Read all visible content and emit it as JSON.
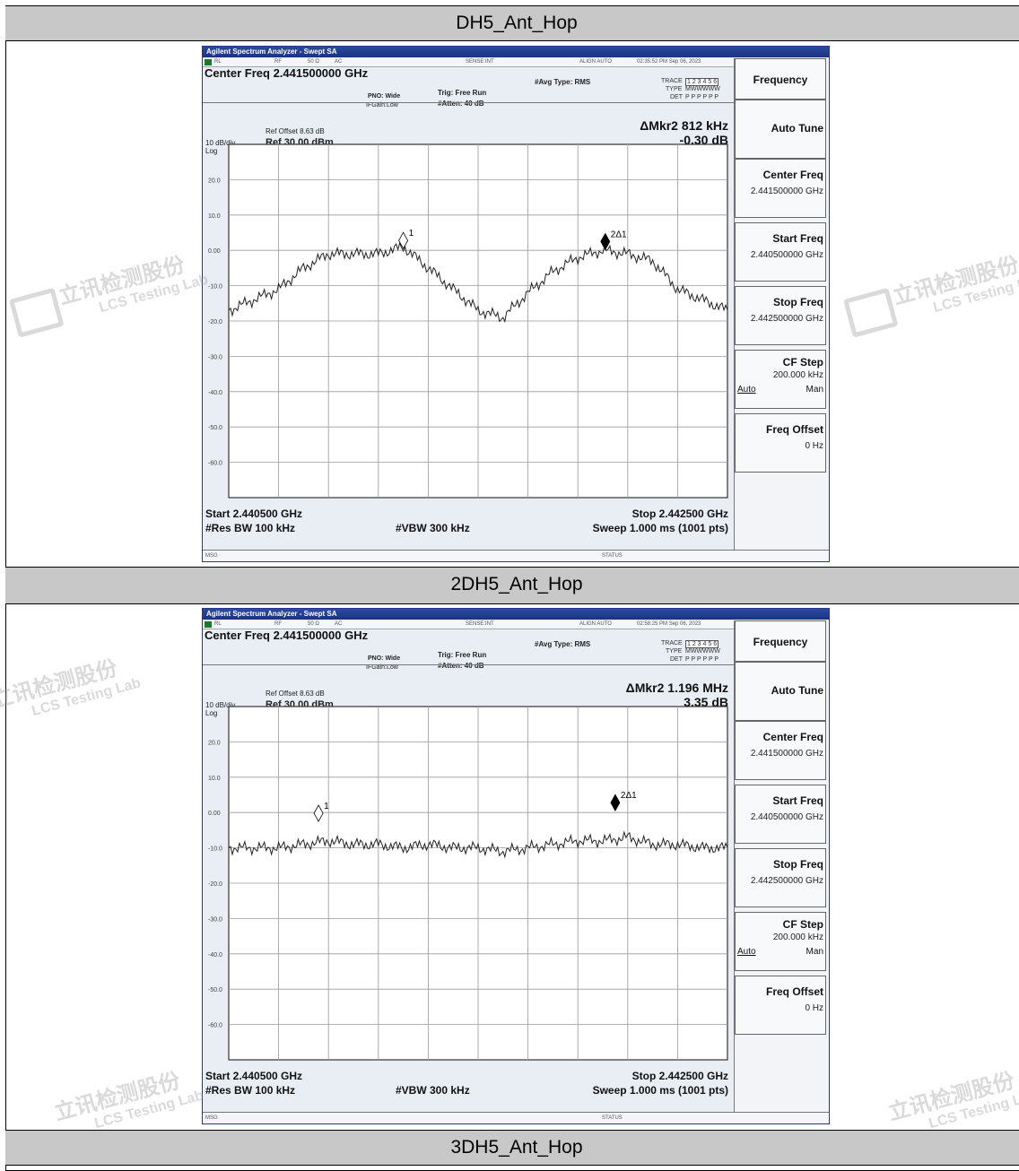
{
  "sections": [
    {
      "header": "DH5_Ant_Hop",
      "sa": {
        "app_title": "Agilent Spectrum Analyzer - Swept SA",
        "status": {
          "rl": "RL",
          "rf": "RF",
          "ohm": "50 Ω",
          "ac": "AC",
          "sense": "SENSE:INT",
          "align": "ALIGN AUTO",
          "timestamp": "02:35:52 PM Sep 06, 2023"
        },
        "center_freq": "Center Freq 2.441500000 GHz",
        "pno": "PNO: Wide",
        "ifgain": "IFGain:Low",
        "trig": "Trig: Free Run",
        "atten": "#Atten: 40 dB",
        "avg_type": "#Avg Type: RMS",
        "trace_label": "TRACE",
        "trace_nums": "1 2 3 4 5 6",
        "type_label": "TYPE",
        "type_val": "MWWWWW",
        "det_label": "DET",
        "det_val": "P P P P P P",
        "ref_offset": "Ref Offset 8.63 dB",
        "ref_level": "Ref 30.00 dBm",
        "scale": "10 dB/div",
        "log": "Log",
        "marker_line1": "ΔMkr2 812 kHz",
        "marker_line2": "-0.30 dB",
        "start": "Start 2.440500 GHz",
        "stop": "Stop 2.442500 GHz",
        "rbw": "#Res BW 100 kHz",
        "vbw": "#VBW 300 kHz",
        "sweep": "Sweep  1.000 ms (1001 pts)",
        "msg": "MSG",
        "status_label": "STATUS",
        "menu": {
          "title": "Frequency",
          "auto_tune": "Auto Tune",
          "center_label": "Center Freq",
          "center_val": "2.441500000 GHz",
          "start_label": "Start Freq",
          "start_val": "2.440500000 GHz",
          "stop_label": "Stop Freq",
          "stop_val": "2.442500000 GHz",
          "cf_label": "CF Step",
          "cf_val": "200.000 kHz",
          "cf_auto": "Auto",
          "cf_man": "Man",
          "offset_label": "Freq Offset",
          "offset_val": "0 Hz"
        },
        "y_ticks": [
          "20.0",
          "10.0",
          "0.00",
          "-10.0",
          "-20.0",
          "-30.0",
          "-40.0",
          "-50.0",
          "-60.0"
        ],
        "marker1_label": "1",
        "marker2_label": "2Δ1"
      }
    },
    {
      "header": "2DH5_Ant_Hop",
      "sa": {
        "app_title": "Agilent Spectrum Analyzer - Swept SA",
        "status": {
          "rl": "RL",
          "rf": "RF",
          "ohm": "50 Ω",
          "ac": "AC",
          "sense": "SENSE:INT",
          "align": "ALIGN AUTO",
          "timestamp": "02:58:25 PM Sep 06, 2023"
        },
        "center_freq": "Center Freq 2.441500000 GHz",
        "pno": "PNO: Wide",
        "ifgain": "IFGain:Low",
        "trig": "Trig: Free Run",
        "atten": "#Atten: 40 dB",
        "avg_type": "#Avg Type: RMS",
        "trace_label": "TRACE",
        "trace_nums": "1 2 3 4 5 6",
        "type_label": "TYPE",
        "type_val": "MWWWWW",
        "det_label": "DET",
        "det_val": "P P P P P P",
        "ref_offset": "Ref Offset 8.63 dB",
        "ref_level": "Ref 30.00 dBm",
        "scale": "10 dB/div",
        "log": "Log",
        "marker_line1": "ΔMkr2 1.196 MHz",
        "marker_line2": "3.35 dB",
        "start": "Start 2.440500 GHz",
        "stop": "Stop 2.442500 GHz",
        "rbw": "#Res BW 100 kHz",
        "vbw": "#VBW 300 kHz",
        "sweep": "Sweep  1.000 ms (1001 pts)",
        "msg": "MSG",
        "status_label": "STATUS",
        "menu": {
          "title": "Frequency",
          "auto_tune": "Auto Tune",
          "center_label": "Center Freq",
          "center_val": "2.441500000 GHz",
          "start_label": "Start Freq",
          "start_val": "2.440500000 GHz",
          "stop_label": "Stop Freq",
          "stop_val": "2.442500000 GHz",
          "cf_label": "CF Step",
          "cf_val": "200.000 kHz",
          "cf_auto": "Auto",
          "cf_man": "Man",
          "offset_label": "Freq Offset",
          "offset_val": "0 Hz"
        },
        "y_ticks": [
          "20.0",
          "10.0",
          "0.00",
          "-10.0",
          "-20.0",
          "-30.0",
          "-40.0",
          "-50.0",
          "-60.0"
        ],
        "marker1_label": "1",
        "marker2_label": "2Δ1"
      }
    },
    {
      "header": "3DH5_Ant_Hop"
    }
  ],
  "watermark": {
    "cn": "立讯检测股份",
    "en": "LCS Testing Lab"
  },
  "chart_data": [
    {
      "type": "line",
      "title": "DH5_Ant_Hop",
      "xlabel": "",
      "ylabel": "",
      "xlim": [
        2.4405,
        2.4425
      ],
      "ylim": [
        -70,
        30
      ],
      "x_unit": "GHz",
      "y_unit": "dBm",
      "grid": true,
      "series": [
        {
          "x": [
            2.4405,
            2.4406,
            2.4407,
            2.4408,
            2.4409,
            2.441,
            2.4411,
            2.4412,
            2.4413,
            2.4414,
            2.4415,
            2.4416,
            2.4417,
            2.4418,
            2.4419,
            2.442,
            2.4421,
            2.4422,
            2.4423,
            2.4424,
            2.4425
          ],
          "values": [
            -17,
            -14,
            -11,
            -5,
            -1,
            -1,
            -1,
            1,
            -5,
            -11,
            -17,
            -19,
            -12,
            -6,
            -2,
            0,
            -1,
            -3,
            -11,
            -14,
            -17
          ]
        }
      ],
      "markers": [
        {
          "label": "1",
          "x": 2.4412,
          "y": 0.5
        },
        {
          "label": "2Δ1",
          "x": 2.44201,
          "y": 0.2
        }
      ]
    },
    {
      "type": "line",
      "title": "2DH5_Ant_Hop",
      "xlabel": "",
      "ylabel": "",
      "xlim": [
        2.4405,
        2.4425
      ],
      "ylim": [
        -70,
        30
      ],
      "x_unit": "GHz",
      "y_unit": "dBm",
      "grid": true,
      "series": [
        {
          "x": [
            2.4405,
            2.4406,
            2.4407,
            2.4408,
            2.4409,
            2.441,
            2.4411,
            2.4412,
            2.4413,
            2.4414,
            2.4415,
            2.4416,
            2.4417,
            2.4418,
            2.4419,
            2.442,
            2.4421,
            2.4422,
            2.4423,
            2.4424,
            2.4425
          ],
          "values": [
            -10,
            -10,
            -10,
            -9,
            -8,
            -9,
            -9,
            -10,
            -9,
            -10,
            -10,
            -11,
            -10,
            -9,
            -8,
            -8,
            -7,
            -9,
            -9,
            -10,
            -10
          ]
        }
      ],
      "markers": [
        {
          "label": "1",
          "x": 2.44086,
          "y": -2.5
        },
        {
          "label": "2Δ1",
          "x": 2.44205,
          "y": 0.5
        }
      ]
    }
  ],
  "colors": {
    "header_bg": "#c8c8c8",
    "plot_bg": "#ffffff",
    "trace": "#222222",
    "grid": "#999999",
    "titlebar": "#2b4aa0"
  }
}
